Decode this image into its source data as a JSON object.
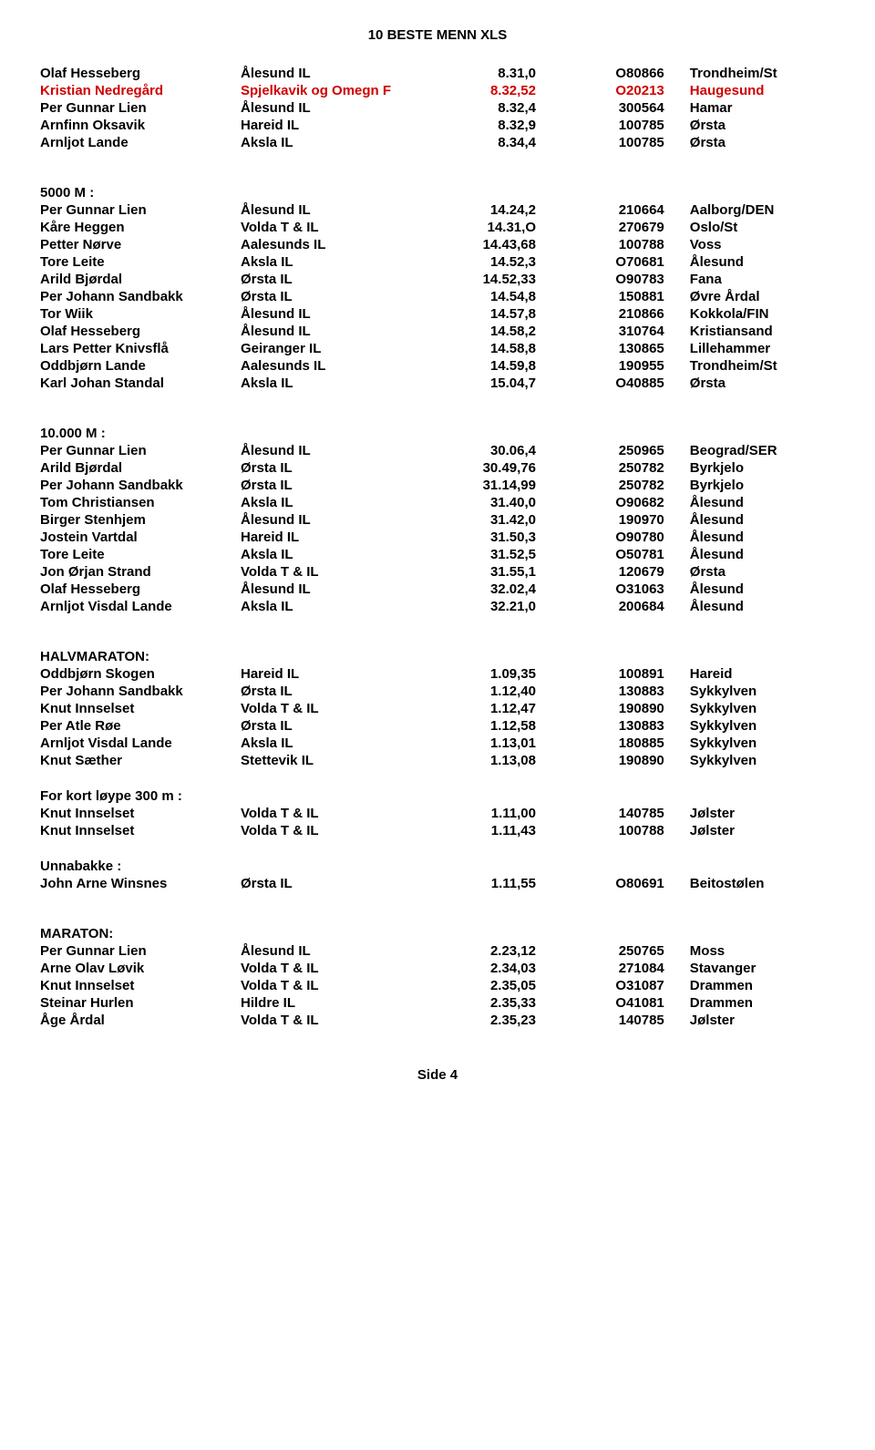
{
  "page_title": "10 BESTE MENN XLS",
  "footer": "Side 4",
  "sections": [
    {
      "header": null,
      "rows": [
        {
          "name": "Olaf Hesseberg",
          "club": "Ålesund IL",
          "result": "8.31,0",
          "code": "O80866",
          "location": "Trondheim/St",
          "red": false
        },
        {
          "name": "Kristian Nedregård",
          "club": "Spjelkavik og Omegn F",
          "result": "8.32,52",
          "code": "O20213",
          "location": "Haugesund",
          "red": true
        },
        {
          "name": "Per Gunnar Lien",
          "club": "Ålesund IL",
          "result": "8.32,4",
          "code": "300564",
          "location": "Hamar",
          "red": false
        },
        {
          "name": "Arnfinn Oksavik",
          "club": "Hareid IL",
          "result": "8.32,9",
          "code": "100785",
          "location": "Ørsta",
          "red": false
        },
        {
          "name": "Arnljot Lande",
          "club": "Aksla IL",
          "result": "8.34,4",
          "code": "100785",
          "location": "Ørsta",
          "red": false
        }
      ]
    },
    {
      "header": "5000 M :",
      "rows": [
        {
          "name": "Per Gunnar Lien",
          "club": "Ålesund IL",
          "result": "14.24,2",
          "code": "210664",
          "location": "Aalborg/DEN",
          "red": false
        },
        {
          "name": "Kåre Heggen",
          "club": "Volda T & IL",
          "result": "14.31,O",
          "code": "270679",
          "location": "Oslo/St",
          "red": false
        },
        {
          "name": "Petter Nørve",
          "club": "Aalesunds IL",
          "result": "14.43,68",
          "code": "100788",
          "location": "Voss",
          "red": false
        },
        {
          "name": "Tore Leite",
          "club": "Aksla IL",
          "result": "14.52,3",
          "code": "O70681",
          "location": "Ålesund",
          "red": false
        },
        {
          "name": "Arild Bjørdal",
          "club": "Ørsta IL",
          "result": "14.52,33",
          "code": "O90783",
          "location": "Fana",
          "red": false
        },
        {
          "name": "Per Johann Sandbakk",
          "club": "Ørsta IL",
          "result": "14.54,8",
          "code": "150881",
          "location": "Øvre Årdal",
          "red": false
        },
        {
          "name": "Tor Wiik",
          "club": "Ålesund IL",
          "result": "14.57,8",
          "code": "210866",
          "location": "Kokkola/FIN",
          "red": false
        },
        {
          "name": "Olaf Hesseberg",
          "club": "Ålesund IL",
          "result": "14.58,2",
          "code": "310764",
          "location": "Kristiansand",
          "red": false
        },
        {
          "name": "Lars Petter Knivsflå",
          "club": "Geiranger IL",
          "result": "14.58,8",
          "code": "130865",
          "location": "Lillehammer",
          "red": false
        },
        {
          "name": "Oddbjørn Lande",
          "club": "Aalesunds IL",
          "result": "14.59,8",
          "code": "190955",
          "location": "Trondheim/St",
          "red": false
        },
        {
          "name": "Karl Johan Standal",
          "club": "Aksla IL",
          "result": "15.04,7",
          "code": "O40885",
          "location": "Ørsta",
          "red": false
        }
      ]
    },
    {
      "header": "10.000 M :",
      "rows": [
        {
          "name": "Per Gunnar Lien",
          "club": "Ålesund IL",
          "result": "30.06,4",
          "code": "250965",
          "location": "Beograd/SER",
          "red": false
        },
        {
          "name": "Arild Bjørdal",
          "club": "Ørsta IL",
          "result": "30.49,76",
          "code": "250782",
          "location": "Byrkjelo",
          "red": false
        },
        {
          "name": "Per Johann Sandbakk",
          "club": "Ørsta IL",
          "result": "31.14,99",
          "code": "250782",
          "location": "Byrkjelo",
          "red": false
        },
        {
          "name": "Tom Christiansen",
          "club": "Aksla IL",
          "result": "31.40,0",
          "code": "O90682",
          "location": "Ålesund",
          "red": false
        },
        {
          "name": "Birger Stenhjem",
          "club": "Ålesund IL",
          "result": "31.42,0",
          "code": "190970",
          "location": "Ålesund",
          "red": false
        },
        {
          "name": "Jostein Vartdal",
          "club": "Hareid IL",
          "result": "31.50,3",
          "code": "O90780",
          "location": "Ålesund",
          "red": false
        },
        {
          "name": "Tore Leite",
          "club": "Aksla IL",
          "result": "31.52,5",
          "code": "O50781",
          "location": "Ålesund",
          "red": false
        },
        {
          "name": "Jon Ørjan Strand",
          "club": "Volda T & IL",
          "result": "31.55,1",
          "code": "120679",
          "location": "Ørsta",
          "red": false
        },
        {
          "name": "Olaf Hesseberg",
          "club": "Ålesund IL",
          "result": "32.02,4",
          "code": "O31063",
          "location": "Ålesund",
          "red": false
        },
        {
          "name": "Arnljot Visdal Lande",
          "club": "Aksla IL",
          "result": "32.21,0",
          "code": "200684",
          "location": "Ålesund",
          "red": false
        }
      ]
    },
    {
      "header": "HALVMARATON:",
      "rows": [
        {
          "name": "Oddbjørn Skogen",
          "club": "Hareid IL",
          "result": "1.09,35",
          "code": "100891",
          "location": "Hareid",
          "red": false
        },
        {
          "name": "Per Johann Sandbakk",
          "club": "Ørsta IL",
          "result": "1.12,40",
          "code": "130883",
          "location": "Sykkylven",
          "red": false
        },
        {
          "name": "Knut Innselset",
          "club": "Volda T & IL",
          "result": "1.12,47",
          "code": "190890",
          "location": "Sykkylven",
          "red": false
        },
        {
          "name": "Per Atle Røe",
          "club": "Ørsta IL",
          "result": "1.12,58",
          "code": "130883",
          "location": "Sykkylven",
          "red": false
        },
        {
          "name": "Arnljot Visdal Lande",
          "club": "Aksla IL",
          "result": "1.13,01",
          "code": "180885",
          "location": "Sykkylven",
          "red": false
        },
        {
          "name": "Knut Sæther",
          "club": "Stettevik IL",
          "result": "1.13,08",
          "code": "190890",
          "location": "Sykkylven",
          "red": false
        }
      ]
    },
    {
      "header": "For kort løype 300 m :",
      "small_gap": true,
      "rows": [
        {
          "name": "Knut Innselset",
          "club": "Volda T & IL",
          "result": "1.11,00",
          "code": "140785",
          "location": "Jølster",
          "red": false
        },
        {
          "name": "Knut Innselset",
          "club": "Volda T & IL",
          "result": "1.11,43",
          "code": "100788",
          "location": "Jølster",
          "red": false
        }
      ]
    },
    {
      "header": "Unnabakke :",
      "small_gap": true,
      "rows": [
        {
          "name": "John Arne Winsnes",
          "club": "Ørsta IL",
          "result": "1.11,55",
          "code": "O80691",
          "location": "Beitostølen",
          "red": false
        }
      ]
    },
    {
      "header": "MARATON:",
      "rows": [
        {
          "name": "Per Gunnar Lien",
          "club": "Ålesund IL",
          "result": "2.23,12",
          "code": "250765",
          "location": "Moss",
          "red": false
        },
        {
          "name": "Arne Olav Løvik",
          "club": "Volda T & IL",
          "result": "2.34,03",
          "code": "271084",
          "location": "Stavanger",
          "red": false
        },
        {
          "name": "Knut Innselset",
          "club": "Volda T & IL",
          "result": "2.35,05",
          "code": "O31087",
          "location": "Drammen",
          "red": false
        },
        {
          "name": "Steinar Hurlen",
          "club": "Hildre IL",
          "result": "2.35,33",
          "code": "O41081",
          "location": "Drammen",
          "red": false
        },
        {
          "name": "Åge Årdal",
          "club": "Volda T & IL",
          "result": "2.35,23",
          "code": "140785",
          "location": "Jølster",
          "red": false
        }
      ]
    }
  ]
}
